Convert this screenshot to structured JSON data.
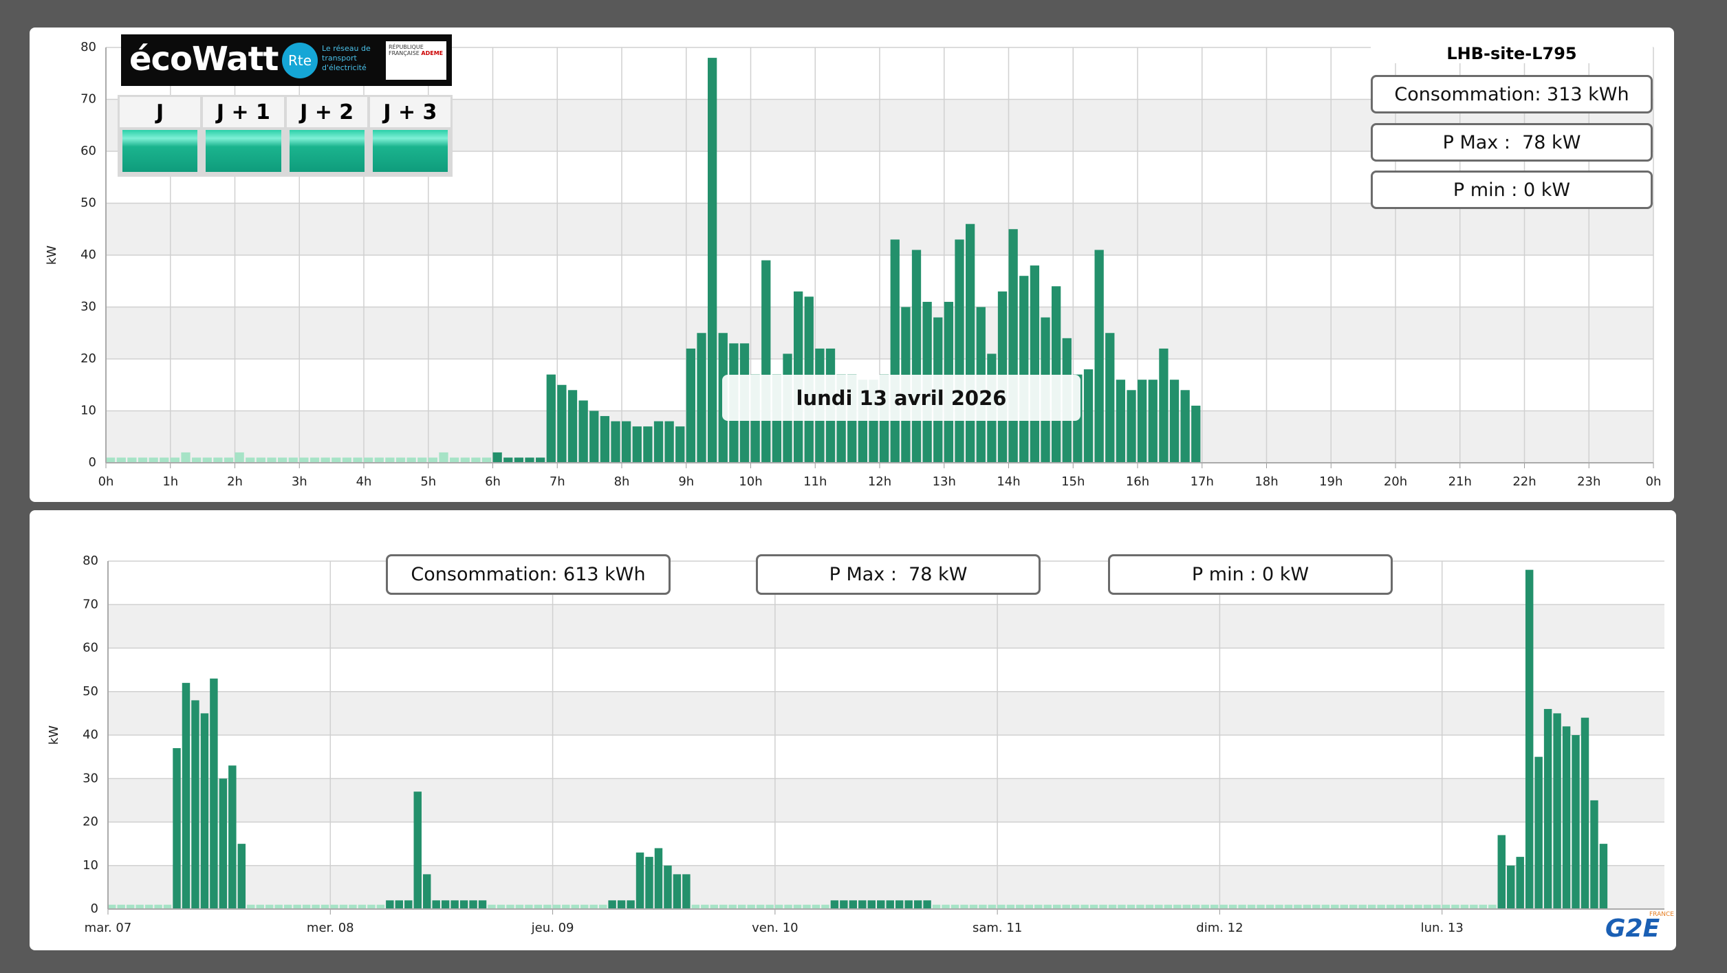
{
  "ecowatt": {
    "brand": "écoWatt",
    "rte": "Rte",
    "rte_tagline": "Le réseau de transport d'électricité",
    "republique": "RÉPUBLIQUE FRANÇAISE",
    "ademe": "ADEME",
    "days": [
      "J",
      "J + 1",
      "J + 2",
      "J + 3"
    ]
  },
  "footer_logo": {
    "brand": "G2E",
    "country": "FRANCE"
  },
  "chart_data": [
    {
      "type": "bar",
      "title": "LHB-site-L795",
      "annotation": "lundi 13 avril 2026",
      "y_label": "kW",
      "stats": [
        "Consommation: 313 kWh",
        "P Max :  78 kW",
        "P min : 0 kW"
      ],
      "xlim": [
        0,
        1440
      ],
      "ylim": [
        0,
        80
      ],
      "yticks": [
        0,
        10,
        20,
        30,
        40,
        50,
        60,
        70,
        80
      ],
      "grid": true,
      "xticks": [
        {
          "value": 0,
          "label": "0h"
        },
        {
          "value": 60,
          "label": "1h"
        },
        {
          "value": 120,
          "label": "2h"
        },
        {
          "value": 180,
          "label": "3h"
        },
        {
          "value": 240,
          "label": "4h"
        },
        {
          "value": 300,
          "label": "5h"
        },
        {
          "value": 360,
          "label": "6h"
        },
        {
          "value": 420,
          "label": "7h"
        },
        {
          "value": 480,
          "label": "8h"
        },
        {
          "value": 540,
          "label": "9h"
        },
        {
          "value": 600,
          "label": "10h"
        },
        {
          "value": 660,
          "label": "11h"
        },
        {
          "value": 720,
          "label": "12h"
        },
        {
          "value": 780,
          "label": "13h"
        },
        {
          "value": 840,
          "label": "14h"
        },
        {
          "value": 900,
          "label": "15h"
        },
        {
          "value": 960,
          "label": "16h"
        },
        {
          "value": 1020,
          "label": "17h"
        },
        {
          "value": 1080,
          "label": "18h"
        },
        {
          "value": 1140,
          "label": "19h"
        },
        {
          "value": 1200,
          "label": "20h"
        },
        {
          "value": 1260,
          "label": "21h"
        },
        {
          "value": 1320,
          "label": "22h"
        },
        {
          "value": 1380,
          "label": "23h"
        },
        {
          "value": 1440,
          "label": "0h"
        }
      ],
      "series": [
        {
          "color": "#a6e3c6",
          "x": [
            0,
            10,
            20,
            30,
            40,
            50,
            60,
            70,
            80,
            90,
            100,
            110,
            120,
            130,
            140,
            150,
            160,
            170,
            180,
            190,
            200,
            210,
            220,
            230,
            240,
            250,
            260,
            270,
            280,
            290,
            300,
            310,
            320,
            330,
            340,
            350
          ],
          "values": [
            1,
            1,
            1,
            1,
            1,
            1,
            1,
            2,
            1,
            1,
            1,
            1,
            2,
            1,
            1,
            1,
            1,
            1,
            1,
            1,
            1,
            1,
            1,
            1,
            1,
            1,
            1,
            1,
            1,
            1,
            1,
            2,
            1,
            1,
            1,
            1
          ]
        },
        {
          "color": "#23906b",
          "x": [
            360,
            370,
            380,
            390,
            400,
            410,
            420,
            430,
            440,
            450,
            460,
            470,
            480,
            490,
            500,
            510,
            520,
            530,
            540,
            550,
            560,
            570,
            580,
            590,
            600,
            610,
            620,
            630,
            640,
            650,
            660,
            670,
            680,
            690,
            700,
            710,
            720,
            730,
            740,
            750,
            760,
            770,
            780,
            790,
            800,
            810,
            820,
            830,
            840,
            850,
            860,
            870,
            880,
            890,
            900,
            910,
            920,
            930,
            940,
            950,
            960,
            970,
            980,
            990,
            1000,
            1010
          ],
          "values": [
            2,
            1,
            1,
            1,
            1,
            17,
            15,
            14,
            12,
            10,
            9,
            8,
            8,
            7,
            7,
            8,
            8,
            7,
            22,
            25,
            78,
            25,
            23,
            23,
            17,
            39,
            17,
            21,
            33,
            32,
            22,
            22,
            17,
            17,
            16,
            16,
            17,
            43,
            30,
            41,
            31,
            28,
            31,
            43,
            46,
            30,
            21,
            33,
            45,
            36,
            38,
            28,
            34,
            24,
            17,
            18,
            41,
            25,
            16,
            14,
            16,
            16,
            22,
            16,
            14,
            11
          ]
        }
      ]
    },
    {
      "type": "bar",
      "y_label": "kW",
      "stats": [
        "Consommation: 613 kWh",
        "P Max :  78 kW",
        "P min : 0 kW"
      ],
      "xlim": [
        0,
        168
      ],
      "ylim": [
        0,
        80
      ],
      "yticks": [
        0,
        10,
        20,
        30,
        40,
        50,
        60,
        70,
        80
      ],
      "grid": true,
      "xticks": [
        {
          "value": 0,
          "label": "mar. 07"
        },
        {
          "value": 24,
          "label": "mer. 08"
        },
        {
          "value": 48,
          "label": "jeu. 09"
        },
        {
          "value": 72,
          "label": "ven. 10"
        },
        {
          "value": 96,
          "label": "sam. 11"
        },
        {
          "value": 120,
          "label": "dim. 12"
        },
        {
          "value": 144,
          "label": "lun. 13"
        }
      ],
      "series": [
        {
          "color": "#a6e3c6",
          "x": [
            0,
            1,
            2,
            3,
            4,
            5,
            6,
            15,
            16,
            17,
            18,
            19,
            20,
            21,
            22,
            23,
            24,
            25,
            26,
            27,
            28,
            29,
            41,
            42,
            43,
            44,
            45,
            46,
            47,
            48,
            49,
            50,
            51,
            52,
            53,
            63,
            64,
            65,
            66,
            67,
            68,
            69,
            70,
            71,
            72,
            73,
            74,
            75,
            76,
            77,
            89,
            90,
            91,
            92,
            93,
            94,
            95,
            96,
            97,
            98,
            99,
            100,
            101,
            102,
            103,
            104,
            105,
            106,
            107,
            108,
            109,
            110,
            111,
            112,
            113,
            114,
            115,
            116,
            117,
            118,
            119,
            120,
            121,
            122,
            123,
            124,
            125,
            126,
            127,
            128,
            129,
            130,
            131,
            132,
            133,
            134,
            135,
            136,
            137,
            138,
            139,
            140,
            141,
            142,
            143,
            144,
            145,
            146,
            147,
            148,
            149
          ],
          "values": [
            1,
            1,
            1,
            1,
            1,
            1,
            1,
            1,
            1,
            1,
            1,
            1,
            1,
            1,
            1,
            1,
            1,
            1,
            1,
            1,
            1,
            1,
            1,
            1,
            1,
            1,
            1,
            1,
            1,
            1,
            1,
            1,
            1,
            1,
            1,
            1,
            1,
            1,
            1,
            1,
            1,
            1,
            1,
            1,
            1,
            1,
            1,
            1,
            1,
            1,
            1,
            1,
            1,
            1,
            1,
            1,
            1,
            1,
            1,
            1,
            1,
            1,
            1,
            1,
            1,
            1,
            1,
            1,
            1,
            1,
            1,
            1,
            1,
            1,
            1,
            1,
            1,
            1,
            1,
            1,
            1,
            1,
            1,
            1,
            1,
            1,
            1,
            1,
            1,
            1,
            1,
            1,
            1,
            1,
            1,
            1,
            1,
            1,
            1,
            1,
            1,
            1,
            1,
            1,
            1,
            1,
            1,
            1,
            1,
            1,
            1
          ]
        },
        {
          "color": "#23906b",
          "x": [
            7,
            8,
            9,
            10,
            11,
            12,
            13,
            14,
            30,
            31,
            32,
            33,
            34,
            35,
            36,
            37,
            38,
            39,
            40,
            54,
            55,
            56,
            57,
            58,
            59,
            60,
            61,
            62,
            78,
            79,
            80,
            81,
            82,
            83,
            84,
            85,
            86,
            87,
            88,
            150,
            151,
            152,
            153,
            154,
            155,
            156,
            157,
            158,
            159,
            160,
            161
          ],
          "values": [
            37,
            52,
            48,
            45,
            53,
            30,
            33,
            15,
            2,
            2,
            2,
            27,
            8,
            2,
            2,
            2,
            2,
            2,
            2,
            2,
            2,
            2,
            13,
            12,
            14,
            10,
            8,
            8,
            2,
            2,
            2,
            2,
            2,
            2,
            2,
            2,
            2,
            2,
            2,
            17,
            10,
            12,
            78,
            35,
            46,
            45,
            42,
            40,
            44,
            25,
            15
          ]
        }
      ]
    }
  ]
}
